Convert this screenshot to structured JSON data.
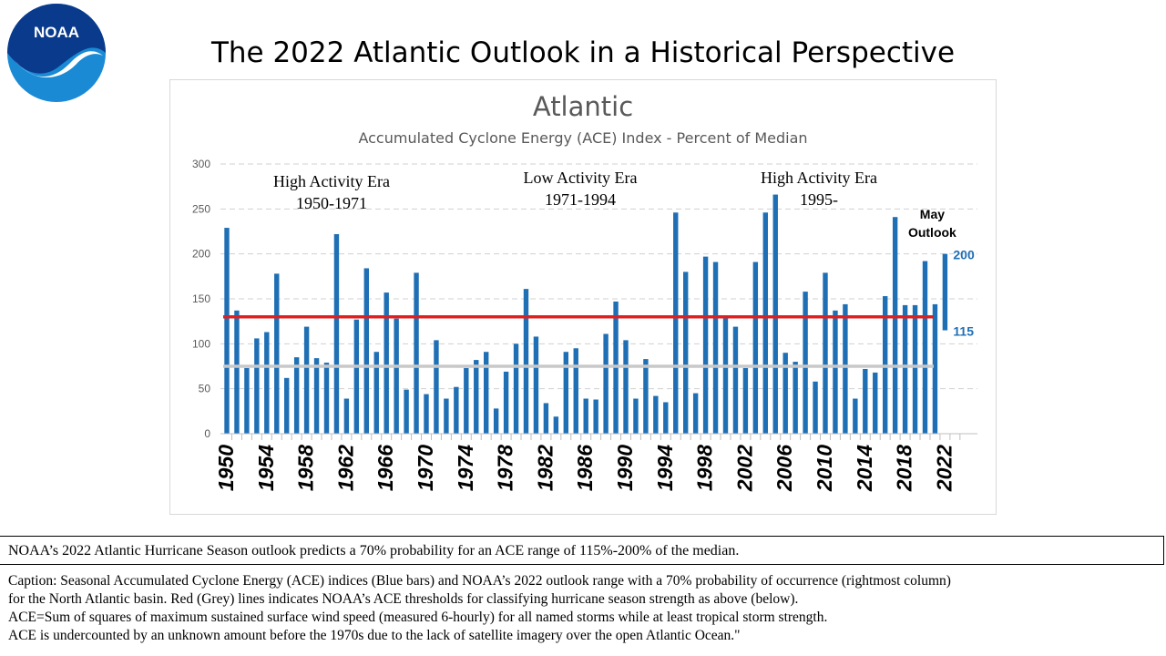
{
  "logo_text": "NOAA",
  "slide_title": "The 2022 Atlantic Outlook in a Historical Perspective",
  "chart_data": {
    "type": "bar",
    "title": "Atlantic",
    "subtitle": "Accumulated Cyclone Energy (ACE) Index - Percent of Median",
    "ylim": [
      0,
      300
    ],
    "yticks": [
      0,
      50,
      100,
      150,
      200,
      250,
      300
    ],
    "grid": true,
    "bar_color": "#1f6fb5",
    "x": [
      1950,
      1951,
      1952,
      1953,
      1954,
      1955,
      1956,
      1957,
      1958,
      1959,
      1960,
      1961,
      1962,
      1963,
      1964,
      1965,
      1966,
      1967,
      1968,
      1969,
      1970,
      1971,
      1972,
      1973,
      1974,
      1975,
      1976,
      1977,
      1978,
      1979,
      1980,
      1981,
      1982,
      1983,
      1984,
      1985,
      1986,
      1987,
      1988,
      1989,
      1990,
      1991,
      1992,
      1993,
      1994,
      1995,
      1996,
      1997,
      1998,
      1999,
      2000,
      2001,
      2002,
      2003,
      2004,
      2005,
      2006,
      2007,
      2008,
      2009,
      2010,
      2011,
      2012,
      2013,
      2014,
      2015,
      2016,
      2017,
      2018,
      2019,
      2020,
      2021
    ],
    "values": [
      229,
      137,
      73,
      106,
      113,
      178,
      62,
      85,
      119,
      84,
      79,
      222,
      39,
      127,
      184,
      91,
      157,
      128,
      49,
      179,
      44,
      104,
      39,
      52,
      73,
      82,
      91,
      28,
      69,
      100,
      161,
      108,
      34,
      19,
      91,
      95,
      39,
      38,
      111,
      147,
      104,
      39,
      83,
      42,
      35,
      246,
      180,
      45,
      197,
      191,
      130,
      119,
      73,
      191,
      246,
      266,
      90,
      80,
      158,
      58,
      179,
      137,
      144,
      39,
      72,
      68,
      153,
      241,
      143,
      143,
      192,
      144
    ],
    "xtick_labels": [
      "1950",
      "1954",
      "1958",
      "1962",
      "1966",
      "1970",
      "1974",
      "1978",
      "1982",
      "1986",
      "1990",
      "1994",
      "1998",
      "2002",
      "2006",
      "2010",
      "2014",
      "2018",
      "2022"
    ],
    "reference_lines": [
      {
        "name": "above normal threshold",
        "value": 130,
        "color": "#e02020"
      },
      {
        "name": "below normal threshold",
        "value": 75,
        "color": "#c8c8c8"
      }
    ],
    "outlook": {
      "year": 2022,
      "low": 115,
      "high": 200,
      "low_label": "115",
      "high_label": "200",
      "label_line1": "May",
      "label_line2": "Outlook"
    },
    "era_annotations": [
      {
        "line1": "High Activity Era",
        "line2": "1950-1971"
      },
      {
        "line1": "Low Activity Era",
        "line2": "1971-1994"
      },
      {
        "line1": "High Activity Era",
        "line2": "1995-"
      }
    ]
  },
  "outlook_statement": "NOAA’s 2022 Atlantic  Hurricane  Season outlook predicts a 70% probability  for an ACE range  of 115%-200%  of the median.",
  "caption_lines": [
    "Caption: Seasonal Accumulated Cyclone Energy (ACE) indices (Blue bars) and NOAA’s 2022 outlook range with a 70% probability of occurrence (rightmost column)",
    "for the North Atlantic  basin. Red (Grey) lines indicates NOAA’s ACE thresholds for classifying  hurricane season strength as above (below).",
    "ACE=Sum of squares of maximum  sustained surface wind speed (measured 6-hourly)  for all  named storms while  at least tropical storm strength.",
    "ACE is undercounted by an unknown amount before the 1970s due to the lack of satellite  imagery  over the open Atlantic  Ocean.\""
  ]
}
